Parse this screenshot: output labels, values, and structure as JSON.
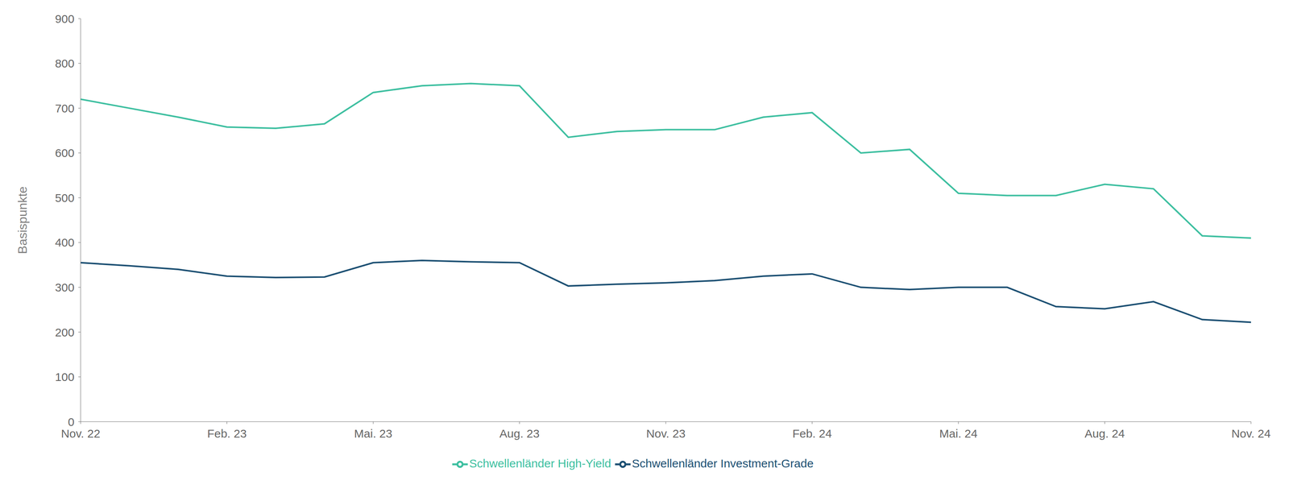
{
  "chart_data": {
    "type": "line",
    "ylabel": "Basispunkte",
    "x": [
      0,
      1,
      2,
      3,
      4,
      5,
      6,
      7,
      8,
      9,
      10,
      11,
      12,
      13,
      14,
      15,
      16,
      17,
      18,
      19,
      20,
      21,
      22,
      23,
      24
    ],
    "series": [
      {
        "name": "Schwellenländer Investment-Grade",
        "color": "#1b4f72",
        "values": [
          355,
          348,
          340,
          325,
          322,
          323,
          355,
          360,
          357,
          355,
          303,
          307,
          310,
          315,
          325,
          330,
          300,
          295,
          300,
          300,
          257,
          252,
          268,
          228,
          222
        ]
      },
      {
        "name": "Schwellenländer High-Yield",
        "color": "#3dbfa0",
        "values": [
          720,
          700,
          680,
          658,
          655,
          665,
          735,
          750,
          755,
          750,
          635,
          648,
          652,
          652,
          680,
          690,
          600,
          608,
          510,
          505,
          505,
          530,
          520,
          415,
          410
        ]
      }
    ],
    "xlim": [
      0,
      24
    ],
    "xticks": [
      {
        "value": 0,
        "label": "Nov. 22"
      },
      {
        "value": 3,
        "label": "Feb. 23"
      },
      {
        "value": 6,
        "label": "Mai. 23"
      },
      {
        "value": 9,
        "label": "Aug. 23"
      },
      {
        "value": 12,
        "label": "Nov. 23"
      },
      {
        "value": 15,
        "label": "Feb. 24"
      },
      {
        "value": 18,
        "label": "Mai. 24"
      },
      {
        "value": 21,
        "label": "Aug. 24"
      },
      {
        "value": 24,
        "label": "Nov. 24"
      }
    ],
    "ylim": [
      0,
      900
    ],
    "yticks": [
      0,
      100,
      200,
      300,
      400,
      500,
      600,
      700,
      800,
      900
    ],
    "grid": false,
    "legend": "bottom"
  }
}
